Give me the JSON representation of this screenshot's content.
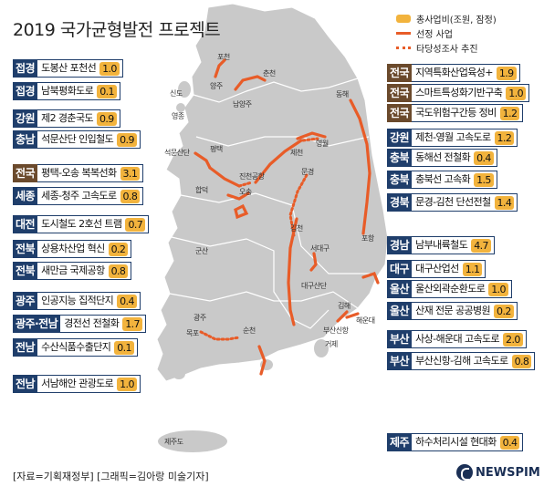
{
  "title": "2019 국가균형발전 프로젝트",
  "legend": {
    "cost": "총사업비(조원, 잠정)",
    "selected": "선정 사업",
    "feasibility": "타당성조사 추진"
  },
  "colors": {
    "tag_blue": "#1f3e6b",
    "tag_brown": "#6b4a2c",
    "value_bg": "#f2b33d",
    "route": "#e85c28",
    "land": "#c9c9c9"
  },
  "projects_left": [
    {
      "region": "접경",
      "name": "도봉산 포천선",
      "value": "1.0"
    },
    {
      "region": "접경",
      "name": "남북평화도로",
      "value": "0.1"
    },
    {
      "region": "강원",
      "name": "제2 경춘국도",
      "value": "0.9"
    },
    {
      "region": "충남",
      "name": "석문산단 인입철도",
      "value": "0.9"
    },
    {
      "region": "전국",
      "name": "평택-오송 복복선화",
      "value": "3.1"
    },
    {
      "region": "세종",
      "name": "세종-청주 고속도로",
      "value": "0.8"
    },
    {
      "region": "대전",
      "name": "도시철도 2호선 트램",
      "value": "0.7"
    },
    {
      "region": "전북",
      "name": "상용차산업 혁신",
      "value": "0.2"
    },
    {
      "region": "전북",
      "name": "새만금 국제공항",
      "value": "0.8"
    },
    {
      "region": "광주",
      "name": "인공지능 집적단지",
      "value": "0.4"
    },
    {
      "region": "광주·전남",
      "name": "경전선 전철화",
      "value": "1.7"
    },
    {
      "region": "전남",
      "name": "수산식품수출단지",
      "value": "0.1"
    },
    {
      "region": "전남",
      "name": "서남해안 관광도로",
      "value": "1.0"
    }
  ],
  "projects_right": [
    {
      "region": "전국",
      "name": "지역특화산업육성+",
      "value": "1.9"
    },
    {
      "region": "전국",
      "name": "스마트특성화기반구축",
      "value": "1.0"
    },
    {
      "region": "전국",
      "name": "국도위험구간등 정비",
      "value": "1.2"
    },
    {
      "region": "강원",
      "name": "제천-영월 고속도로",
      "value": "1.2"
    },
    {
      "region": "충북",
      "name": "동해선 전철화",
      "value": "0.4"
    },
    {
      "region": "충북",
      "name": "충북선 고속화",
      "value": "1.5"
    },
    {
      "region": "경북",
      "name": "문경-김천 단선전철",
      "value": "1.4"
    },
    {
      "region": "경남",
      "name": "남부내륙철도",
      "value": "4.7"
    },
    {
      "region": "대구",
      "name": "대구산업선",
      "value": "1.1"
    },
    {
      "region": "울산",
      "name": "울산외곽순환도로",
      "value": "1.0"
    },
    {
      "region": "울산",
      "name": "산재 전문 공공병원",
      "value": "0.2"
    },
    {
      "region": "부산",
      "name": "사상-해운대 고속도로",
      "value": "2.0"
    },
    {
      "region": "부산",
      "name": "부산신항-김해 고속도로",
      "value": "0.8"
    }
  ],
  "project_jeju": {
    "region": "제주",
    "name": "하수처리시설 현대화",
    "value": "0.4"
  },
  "places": {
    "pocheon": "포천",
    "yangju": "양주",
    "chuncheon": "춘천",
    "namyangju": "남양주",
    "sindo": "신도",
    "yeongjong": "영종",
    "donghae": "동해",
    "seokmun": "석문산단",
    "pyeongtaek": "평택",
    "jecheon": "제천",
    "yeongwol": "영월",
    "hapdeok": "합덕",
    "jincheon": "진천공항",
    "osong": "오송",
    "mungyeong": "문경",
    "gimcheon": "김천",
    "pohang": "포항",
    "gunsan": "군산",
    "seodaegu": "서대구",
    "daegusandan": "대구산단",
    "gimhae": "김해",
    "busansinhang": "부산신항",
    "haeundae": "해운대",
    "geoje": "거제",
    "gwangju": "광주",
    "suncheon": "순천",
    "mokpo": "목포",
    "jeju": "제주도"
  },
  "footer": "[자료=기획재정부] [그래픽=김아랑 미술기자]",
  "brand": "NEWSPIM"
}
